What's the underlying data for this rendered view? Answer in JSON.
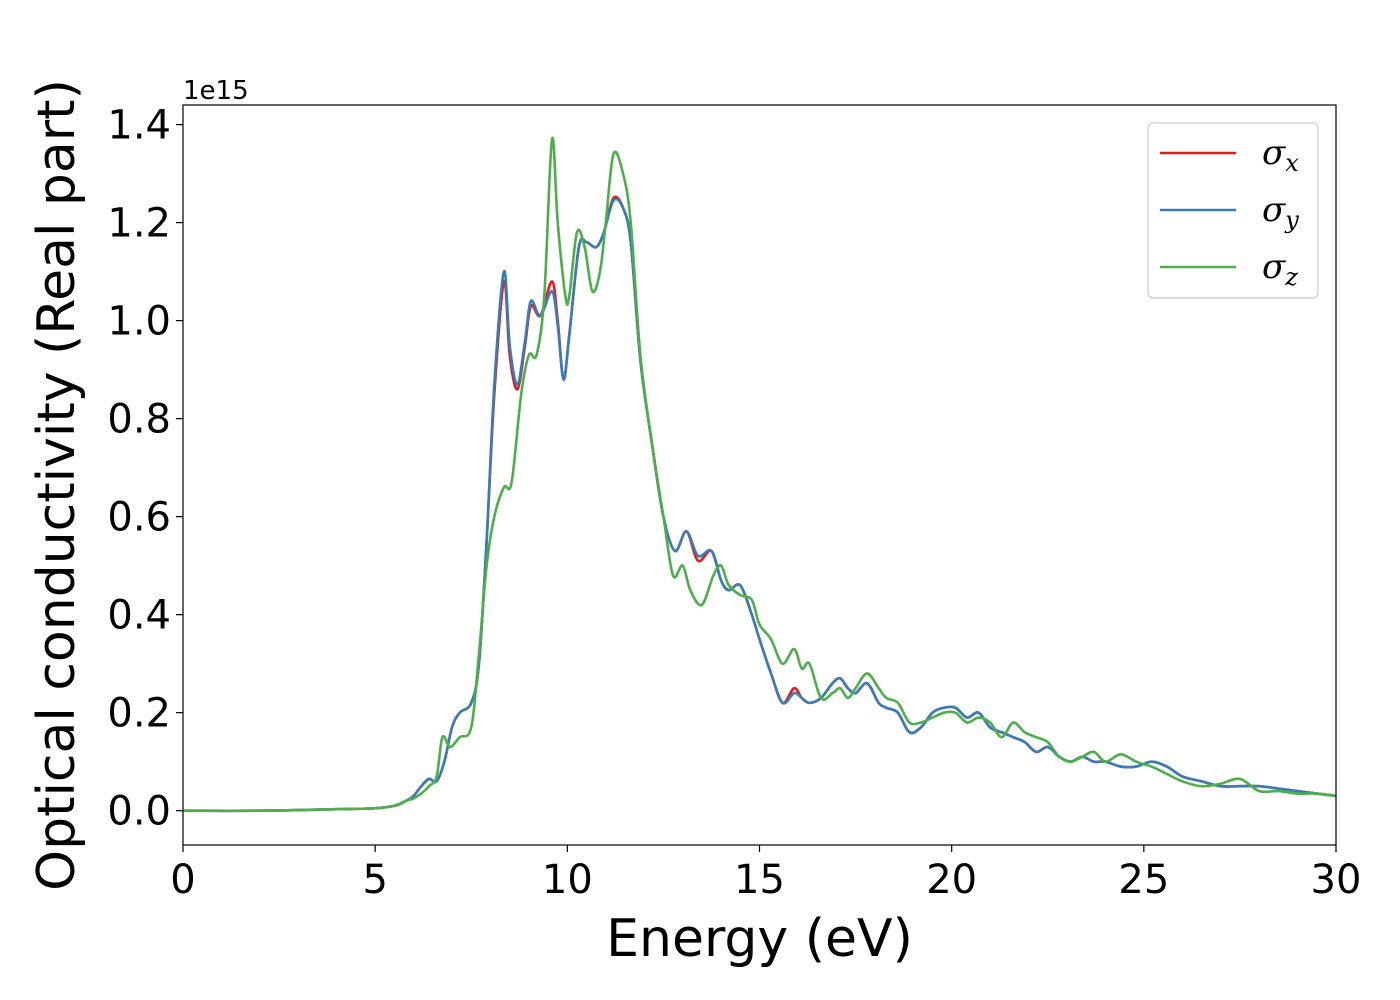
{
  "chart_data": {
    "type": "line",
    "title": "",
    "xlabel": "Energy (eV)",
    "ylabel": "Optical conductivity (Real part)",
    "y_offset_label": "1e15",
    "xlim": [
      0,
      30
    ],
    "ylim": [
      -0.07,
      1.44
    ],
    "x_ticks": [
      0,
      5,
      10,
      15,
      20,
      25,
      30
    ],
    "x_tick_labels": [
      "0",
      "5",
      "10",
      "15",
      "20",
      "25",
      "30"
    ],
    "y_ticks": [
      0.0,
      0.2,
      0.4,
      0.6,
      0.8,
      1.0,
      1.2,
      1.4
    ],
    "y_tick_labels": [
      "0.0",
      "0.2",
      "0.4",
      "0.6",
      "0.8",
      "1.0",
      "1.2",
      "1.4"
    ],
    "grid": false,
    "legend_position": "top-right",
    "series": [
      {
        "name": "σx",
        "legend_base": "σ",
        "legend_sub": "x",
        "color": "#e41a1c",
        "x": [
          0,
          2,
          4,
          5,
          5.5,
          5.8,
          6.0,
          6.2,
          6.4,
          6.6,
          6.8,
          7.0,
          7.2,
          7.5,
          7.7,
          7.9,
          8.1,
          8.35,
          8.5,
          8.7,
          8.9,
          9.05,
          9.3,
          9.6,
          9.75,
          9.9,
          10.05,
          10.3,
          10.5,
          10.75,
          10.95,
          11.2,
          11.45,
          11.65,
          11.9,
          12.2,
          12.5,
          12.8,
          13.1,
          13.4,
          13.75,
          14.0,
          14.2,
          14.5,
          14.8,
          15.0,
          15.3,
          15.6,
          15.9,
          16.1,
          16.3,
          16.6,
          16.9,
          17.1,
          17.3,
          17.5,
          17.8,
          18.1,
          18.3,
          18.6,
          18.9,
          19.2,
          19.5,
          19.8,
          20.1,
          20.4,
          20.7,
          21.0,
          21.3,
          21.6,
          21.9,
          22.2,
          22.5,
          22.8,
          23.1,
          23.4,
          23.7,
          24.0,
          24.4,
          24.8,
          25.2,
          25.6,
          26.0,
          26.5,
          27.0,
          27.5,
          28.0,
          28.5,
          29.0,
          29.5,
          30.0
        ],
        "y": [
          0.0,
          0.0,
          0.003,
          0.005,
          0.01,
          0.02,
          0.03,
          0.05,
          0.065,
          0.06,
          0.1,
          0.17,
          0.2,
          0.22,
          0.3,
          0.55,
          0.85,
          1.08,
          0.93,
          0.86,
          0.95,
          1.03,
          1.01,
          1.08,
          1.0,
          0.88,
          0.97,
          1.15,
          1.16,
          1.15,
          1.18,
          1.25,
          1.23,
          1.16,
          0.92,
          0.75,
          0.6,
          0.53,
          0.57,
          0.51,
          0.53,
          0.47,
          0.45,
          0.46,
          0.4,
          0.35,
          0.28,
          0.22,
          0.25,
          0.23,
          0.22,
          0.23,
          0.26,
          0.27,
          0.25,
          0.24,
          0.26,
          0.22,
          0.21,
          0.2,
          0.16,
          0.17,
          0.2,
          0.21,
          0.21,
          0.19,
          0.2,
          0.17,
          0.16,
          0.15,
          0.14,
          0.12,
          0.13,
          0.11,
          0.1,
          0.11,
          0.1,
          0.1,
          0.09,
          0.09,
          0.1,
          0.09,
          0.07,
          0.06,
          0.05,
          0.05,
          0.05,
          0.045,
          0.04,
          0.035,
          0.03
        ]
      },
      {
        "name": "σy",
        "legend_base": "σ",
        "legend_sub": "y",
        "color": "#377eb8",
        "x": [
          0,
          2,
          4,
          5,
          5.5,
          5.8,
          6.0,
          6.2,
          6.4,
          6.6,
          6.8,
          7.0,
          7.2,
          7.5,
          7.7,
          7.9,
          8.1,
          8.35,
          8.5,
          8.7,
          8.9,
          9.05,
          9.3,
          9.6,
          9.75,
          9.9,
          10.05,
          10.3,
          10.5,
          10.75,
          10.95,
          11.2,
          11.45,
          11.65,
          11.9,
          12.2,
          12.5,
          12.8,
          13.1,
          13.4,
          13.75,
          14.0,
          14.2,
          14.5,
          14.8,
          15.0,
          15.3,
          15.6,
          15.9,
          16.1,
          16.3,
          16.6,
          16.9,
          17.1,
          17.3,
          17.5,
          17.8,
          18.1,
          18.3,
          18.6,
          18.9,
          19.2,
          19.5,
          19.8,
          20.1,
          20.4,
          20.7,
          21.0,
          21.3,
          21.6,
          21.9,
          22.2,
          22.5,
          22.8,
          23.1,
          23.4,
          23.7,
          24.0,
          24.4,
          24.8,
          25.2,
          25.6,
          26.0,
          26.5,
          27.0,
          27.5,
          28.0,
          28.5,
          29.0,
          29.5,
          30.0
        ],
        "y": [
          0.0,
          0.0,
          0.003,
          0.005,
          0.01,
          0.02,
          0.03,
          0.05,
          0.065,
          0.06,
          0.1,
          0.17,
          0.2,
          0.22,
          0.3,
          0.55,
          0.87,
          1.1,
          0.95,
          0.87,
          0.96,
          1.04,
          1.01,
          1.06,
          0.99,
          0.88,
          0.97,
          1.15,
          1.16,
          1.15,
          1.18,
          1.245,
          1.23,
          1.16,
          0.92,
          0.75,
          0.6,
          0.53,
          0.57,
          0.52,
          0.53,
          0.47,
          0.45,
          0.46,
          0.4,
          0.35,
          0.28,
          0.22,
          0.24,
          0.23,
          0.22,
          0.23,
          0.26,
          0.27,
          0.25,
          0.24,
          0.26,
          0.22,
          0.21,
          0.2,
          0.16,
          0.17,
          0.2,
          0.21,
          0.21,
          0.19,
          0.2,
          0.17,
          0.16,
          0.15,
          0.14,
          0.12,
          0.13,
          0.11,
          0.1,
          0.11,
          0.1,
          0.1,
          0.09,
          0.09,
          0.1,
          0.09,
          0.07,
          0.06,
          0.05,
          0.05,
          0.05,
          0.045,
          0.04,
          0.035,
          0.03
        ]
      },
      {
        "name": "σz",
        "legend_base": "σ",
        "legend_sub": "z",
        "color": "#4daf4a",
        "x": [
          0,
          2,
          4,
          5,
          5.5,
          5.8,
          6.0,
          6.2,
          6.4,
          6.6,
          6.75,
          6.95,
          7.2,
          7.5,
          7.7,
          7.9,
          8.1,
          8.35,
          8.55,
          8.8,
          9.0,
          9.2,
          9.4,
          9.6,
          9.75,
          9.95,
          10.05,
          10.25,
          10.45,
          10.65,
          10.85,
          11.0,
          11.2,
          11.45,
          11.65,
          11.9,
          12.2,
          12.5,
          12.75,
          13.0,
          13.2,
          13.5,
          13.8,
          14.0,
          14.2,
          14.5,
          14.8,
          15.0,
          15.3,
          15.6,
          15.9,
          16.1,
          16.3,
          16.6,
          16.9,
          17.1,
          17.3,
          17.5,
          17.8,
          18.1,
          18.3,
          18.6,
          18.9,
          19.2,
          19.5,
          19.8,
          20.1,
          20.4,
          20.7,
          21.0,
          21.3,
          21.6,
          21.9,
          22.2,
          22.5,
          22.8,
          23.1,
          23.4,
          23.7,
          24.0,
          24.4,
          24.8,
          25.2,
          25.6,
          26.0,
          26.5,
          27.0,
          27.5,
          28.0,
          28.5,
          29.0,
          29.5,
          30.0
        ],
        "y": [
          0.0,
          0.0,
          0.003,
          0.005,
          0.01,
          0.02,
          0.025,
          0.035,
          0.05,
          0.07,
          0.15,
          0.13,
          0.15,
          0.17,
          0.32,
          0.5,
          0.6,
          0.66,
          0.67,
          0.85,
          0.93,
          0.93,
          1.05,
          1.37,
          1.2,
          1.05,
          1.05,
          1.18,
          1.15,
          1.06,
          1.1,
          1.2,
          1.34,
          1.3,
          1.2,
          0.93,
          0.75,
          0.6,
          0.48,
          0.5,
          0.45,
          0.42,
          0.48,
          0.5,
          0.46,
          0.44,
          0.43,
          0.38,
          0.35,
          0.3,
          0.33,
          0.29,
          0.3,
          0.23,
          0.24,
          0.25,
          0.23,
          0.25,
          0.28,
          0.25,
          0.23,
          0.22,
          0.18,
          0.18,
          0.19,
          0.2,
          0.2,
          0.18,
          0.19,
          0.18,
          0.15,
          0.18,
          0.16,
          0.15,
          0.14,
          0.11,
          0.1,
          0.11,
          0.12,
          0.1,
          0.115,
          0.1,
          0.09,
          0.075,
          0.06,
          0.05,
          0.055,
          0.065,
          0.04,
          0.04,
          0.035,
          0.035,
          0.03
        ]
      }
    ]
  }
}
